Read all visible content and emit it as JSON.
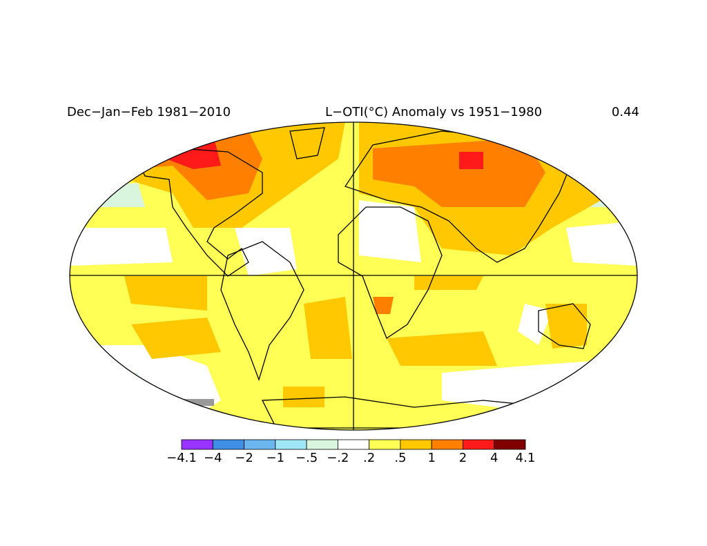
{
  "header": {
    "period": "Dec−Jan−Feb 1981−2010",
    "title": "L−OTI(°C) Anomaly vs 1951−1980",
    "global_mean": 0.44
  },
  "legend": {
    "colors": [
      "#9933ff",
      "#3f8fe6",
      "#6cb6f0",
      "#9fe6f7",
      "#d9f5dd",
      "#ffffff",
      "#ffff55",
      "#ffc800",
      "#ff8000",
      "#ff1a1a",
      "#800000"
    ],
    "labels": [
      "−4.1",
      "−4",
      "−2",
      "−1",
      "−.5",
      "−.2",
      ".2",
      ".5",
      "1",
      "2",
      "4",
      "4.1"
    ]
  }
}
